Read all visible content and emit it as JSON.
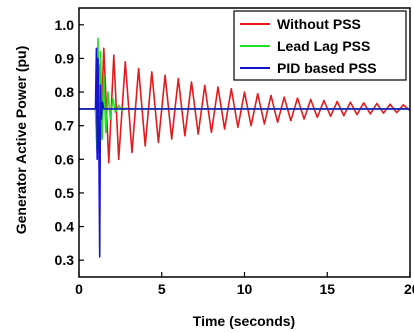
{
  "chart_data": {
    "type": "line",
    "title": "",
    "xlabel": "Time (seconds)",
    "ylabel": "Generator Active Power (pu)",
    "xlim": [
      0,
      20
    ],
    "ylim": [
      0.25,
      1.05
    ],
    "xticks": [
      0,
      5,
      10,
      15,
      20
    ],
    "yticks": [
      0.3,
      0.4,
      0.5,
      0.6,
      0.7,
      0.8,
      0.9,
      1.0
    ],
    "xtick_labels": [
      "0",
      "5",
      "10",
      "15",
      "20"
    ],
    "ytick_labels": [
      "0.3",
      "0.4",
      "0.5",
      "0.6",
      "0.7",
      "0.8",
      "0.9",
      "1.0"
    ],
    "grid": false,
    "legend_position": "top-right",
    "series": [
      {
        "name": "Without PSS",
        "color": "#e41a1c",
        "x": [
          0,
          1.0,
          1.1,
          1.2,
          1.3,
          1.5,
          1.8,
          2.1,
          2.4,
          2.8,
          3.2,
          3.6,
          4.0,
          4.4,
          4.8,
          5.2,
          5.6,
          6.0,
          6.4,
          6.8,
          7.2,
          7.6,
          8.0,
          8.4,
          8.8,
          9.2,
          9.6,
          10.0,
          10.4,
          10.8,
          11.2,
          11.6,
          12.0,
          12.4,
          12.8,
          13.2,
          13.6,
          14.0,
          14.4,
          14.8,
          15.2,
          15.6,
          16.0,
          16.4,
          16.8,
          17.2,
          17.6,
          18.0,
          18.4,
          18.8,
          19.2,
          19.6,
          20.0
        ],
        "y": [
          0.75,
          0.75,
          0.62,
          0.88,
          0.66,
          0.93,
          0.59,
          0.91,
          0.6,
          0.89,
          0.62,
          0.87,
          0.64,
          0.86,
          0.65,
          0.85,
          0.66,
          0.84,
          0.67,
          0.83,
          0.675,
          0.82,
          0.68,
          0.815,
          0.69,
          0.81,
          0.695,
          0.8,
          0.7,
          0.795,
          0.705,
          0.79,
          0.71,
          0.785,
          0.715,
          0.782,
          0.72,
          0.778,
          0.725,
          0.775,
          0.728,
          0.772,
          0.73,
          0.77,
          0.733,
          0.768,
          0.735,
          0.766,
          0.737,
          0.764,
          0.739,
          0.762,
          0.745
        ]
      },
      {
        "name": "Lead Lag PSS",
        "color": "#22dd22",
        "x": [
          0,
          1.0,
          1.08,
          1.15,
          1.22,
          1.3,
          1.4,
          1.5,
          1.62,
          1.75,
          1.9,
          2.05,
          2.2,
          2.4,
          2.6,
          2.8,
          3.0,
          20
        ],
        "y": [
          0.75,
          0.75,
          0.63,
          0.96,
          0.62,
          0.92,
          0.66,
          0.85,
          0.68,
          0.8,
          0.72,
          0.78,
          0.74,
          0.76,
          0.745,
          0.752,
          0.75,
          0.75
        ]
      },
      {
        "name": "PID based PSS",
        "color": "#1515cc",
        "x": [
          0,
          1.0,
          1.05,
          1.1,
          1.15,
          1.2,
          1.25,
          1.3,
          1.35,
          1.42,
          1.5,
          20
        ],
        "y": [
          0.75,
          0.75,
          0.93,
          0.6,
          0.9,
          0.64,
          0.31,
          0.82,
          0.72,
          0.77,
          0.75,
          0.75
        ]
      }
    ]
  }
}
